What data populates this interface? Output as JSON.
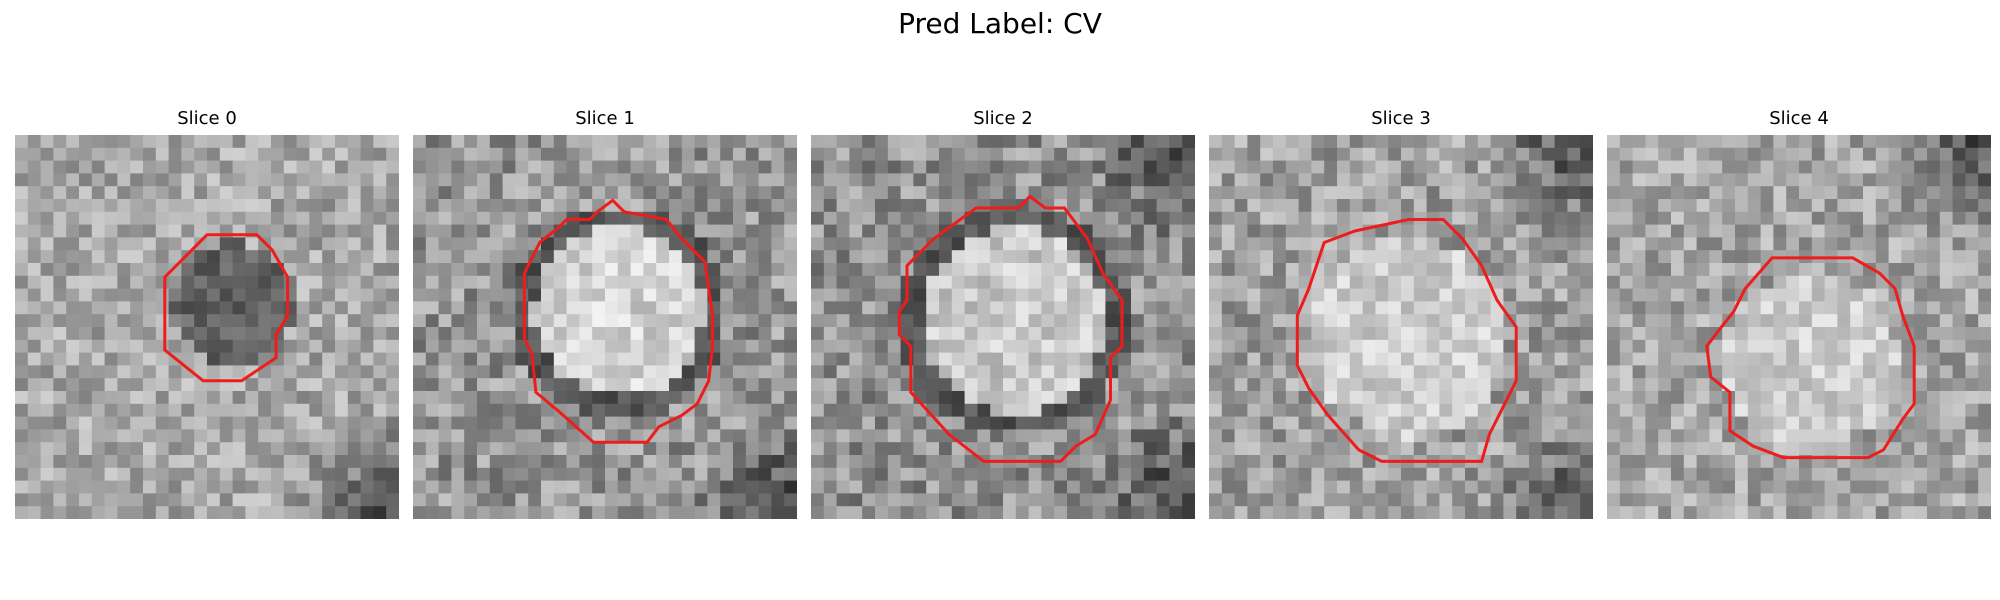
{
  "suptitle": "Pred Label: CV",
  "contour_color": "#ee1c1c",
  "panels": [
    {
      "title": "Slice 0",
      "bg": 168,
      "variation": 80,
      "blob_value": 98,
      "blob_radius_frac": 0.16,
      "ring": false,
      "dark_corners": [
        "bottom-right"
      ],
      "contour": [
        [
          0.5,
          0.26
        ],
        [
          0.63,
          0.26
        ],
        [
          0.67,
          0.3
        ],
        [
          0.71,
          0.37
        ],
        [
          0.71,
          0.47
        ],
        [
          0.68,
          0.52
        ],
        [
          0.68,
          0.58
        ],
        [
          0.59,
          0.64
        ],
        [
          0.49,
          0.64
        ],
        [
          0.39,
          0.56
        ],
        [
          0.39,
          0.37
        ],
        [
          0.44,
          0.32
        ]
      ]
    },
    {
      "title": "Slice 1",
      "bg": 150,
      "variation": 95,
      "blob_value": 210,
      "blob_radius_frac": 0.22,
      "ring": true,
      "dark_corners": [
        "bottom-right"
      ],
      "contour": [
        [
          0.48,
          0.2
        ],
        [
          0.52,
          0.17
        ],
        [
          0.55,
          0.2
        ],
        [
          0.66,
          0.22
        ],
        [
          0.7,
          0.27
        ],
        [
          0.76,
          0.33
        ],
        [
          0.78,
          0.47
        ],
        [
          0.78,
          0.55
        ],
        [
          0.77,
          0.64
        ],
        [
          0.74,
          0.7
        ],
        [
          0.7,
          0.73
        ],
        [
          0.64,
          0.76
        ],
        [
          0.61,
          0.8
        ],
        [
          0.47,
          0.8
        ],
        [
          0.38,
          0.72
        ],
        [
          0.32,
          0.67
        ],
        [
          0.31,
          0.57
        ],
        [
          0.29,
          0.53
        ],
        [
          0.29,
          0.36
        ],
        [
          0.33,
          0.28
        ],
        [
          0.38,
          0.24
        ],
        [
          0.4,
          0.22
        ],
        [
          0.46,
          0.22
        ]
      ]
    },
    {
      "title": "Slice 2",
      "bg": 145,
      "variation": 95,
      "blob_value": 200,
      "blob_radius_frac": 0.24,
      "ring": true,
      "dark_corners": [
        "bottom-right",
        "top-right"
      ],
      "contour": [
        [
          0.43,
          0.19
        ],
        [
          0.54,
          0.19
        ],
        [
          0.57,
          0.16
        ],
        [
          0.61,
          0.19
        ],
        [
          0.66,
          0.19
        ],
        [
          0.72,
          0.27
        ],
        [
          0.76,
          0.36
        ],
        [
          0.81,
          0.43
        ],
        [
          0.81,
          0.55
        ],
        [
          0.78,
          0.58
        ],
        [
          0.78,
          0.69
        ],
        [
          0.74,
          0.78
        ],
        [
          0.69,
          0.81
        ],
        [
          0.65,
          0.85
        ],
        [
          0.45,
          0.85
        ],
        [
          0.36,
          0.78
        ],
        [
          0.26,
          0.67
        ],
        [
          0.26,
          0.55
        ],
        [
          0.23,
          0.52
        ],
        [
          0.23,
          0.46
        ],
        [
          0.25,
          0.43
        ],
        [
          0.25,
          0.34
        ],
        [
          0.32,
          0.27
        ]
      ]
    },
    {
      "title": "Slice 3",
      "bg": 160,
      "variation": 90,
      "blob_value": 205,
      "blob_radius_frac": 0.26,
      "ring": false,
      "dark_corners": [
        "top-right",
        "bottom-right"
      ],
      "contour": [
        [
          0.3,
          0.28
        ],
        [
          0.38,
          0.25
        ],
        [
          0.52,
          0.22
        ],
        [
          0.61,
          0.22
        ],
        [
          0.66,
          0.27
        ],
        [
          0.71,
          0.34
        ],
        [
          0.75,
          0.43
        ],
        [
          0.8,
          0.5
        ],
        [
          0.8,
          0.64
        ],
        [
          0.77,
          0.7
        ],
        [
          0.73,
          0.78
        ],
        [
          0.71,
          0.85
        ],
        [
          0.45,
          0.85
        ],
        [
          0.39,
          0.82
        ],
        [
          0.31,
          0.73
        ],
        [
          0.26,
          0.66
        ],
        [
          0.23,
          0.6
        ],
        [
          0.23,
          0.47
        ],
        [
          0.26,
          0.4
        ]
      ]
    },
    {
      "title": "Slice 4",
      "bg": 165,
      "variation": 85,
      "blob_value": 205,
      "blob_radius_frac": 0.23,
      "ring": false,
      "dark_corners": [
        "top-right"
      ],
      "contour": [
        [
          0.43,
          0.32
        ],
        [
          0.64,
          0.32
        ],
        [
          0.71,
          0.36
        ],
        [
          0.75,
          0.4
        ],
        [
          0.77,
          0.47
        ],
        [
          0.8,
          0.55
        ],
        [
          0.8,
          0.7
        ],
        [
          0.77,
          0.74
        ],
        [
          0.72,
          0.82
        ],
        [
          0.68,
          0.84
        ],
        [
          0.46,
          0.84
        ],
        [
          0.38,
          0.81
        ],
        [
          0.32,
          0.77
        ],
        [
          0.32,
          0.67
        ],
        [
          0.27,
          0.63
        ],
        [
          0.26,
          0.55
        ],
        [
          0.29,
          0.51
        ],
        [
          0.33,
          0.46
        ],
        [
          0.36,
          0.4
        ]
      ]
    }
  ]
}
